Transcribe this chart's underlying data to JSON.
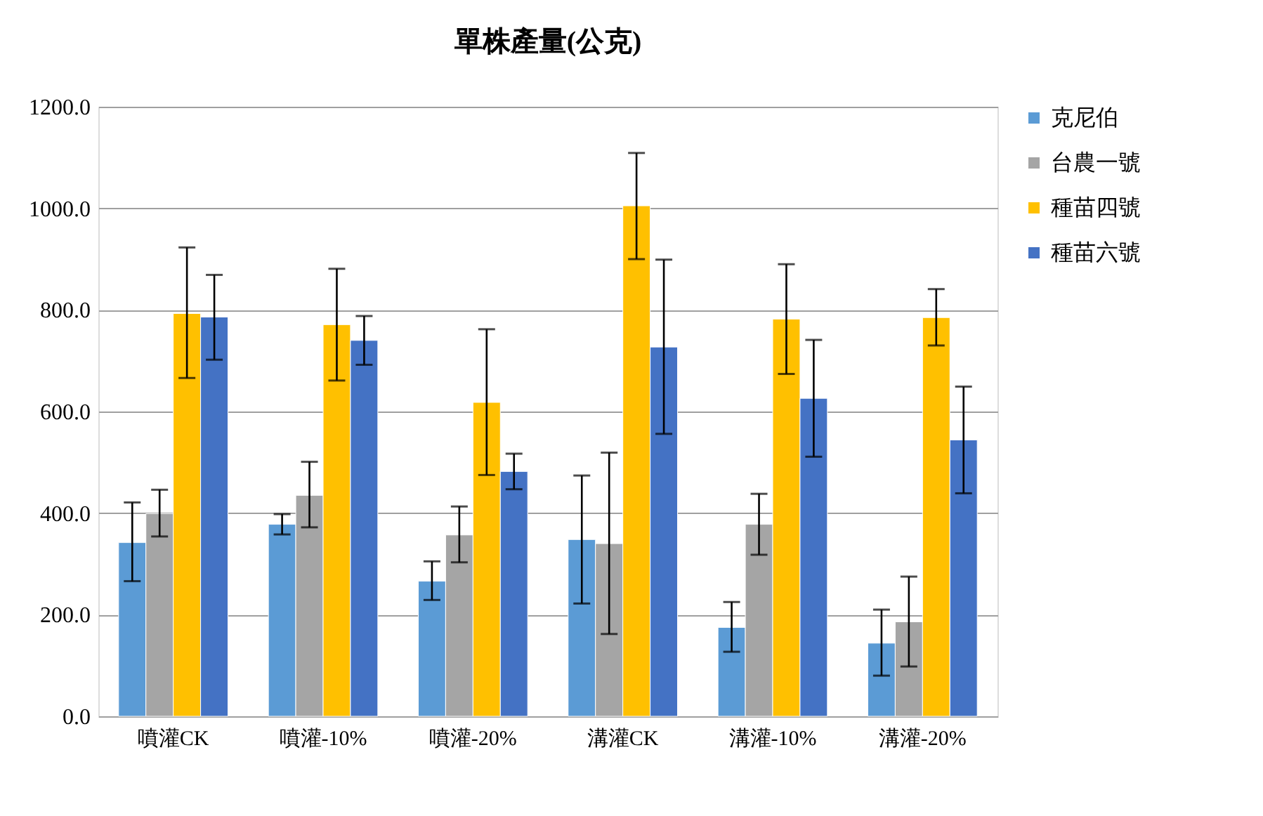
{
  "chart_data": {
    "type": "bar",
    "title": "單株產量(公克)",
    "categories": [
      "噴灌CK",
      "噴灌-10%",
      "噴灌-20%",
      "溝灌CK",
      "溝灌-10%",
      "溝灌-20%"
    ],
    "series": [
      {
        "name": "克尼伯",
        "color": "#5b9bd5",
        "values": [
          342,
          378,
          266,
          348,
          175,
          144
        ],
        "errors": [
          [
            266,
            421
          ],
          [
            358,
            398
          ],
          [
            229,
            305
          ],
          [
            222,
            474
          ],
          [
            127,
            225
          ],
          [
            80,
            210
          ]
        ]
      },
      {
        "name": "台農一號",
        "color": "#a5a5a5",
        "values": [
          399,
          435,
          357,
          340,
          378,
          186
        ],
        "errors": [
          [
            354,
            446
          ],
          [
            372,
            501
          ],
          [
            303,
            413
          ],
          [
            162,
            519
          ],
          [
            318,
            438
          ],
          [
            98,
            275
          ]
        ]
      },
      {
        "name": "種苗四號",
        "color": "#ffc000",
        "values": [
          793,
          771,
          618,
          1005,
          782,
          785
        ],
        "errors": [
          [
            666,
            923
          ],
          [
            661,
            881
          ],
          [
            475,
            762
          ],
          [
            900,
            1109
          ],
          [
            674,
            890
          ],
          [
            730,
            841
          ]
        ]
      },
      {
        "name": "種苗六號",
        "color": "#4472c4",
        "values": [
          786,
          740,
          482,
          727,
          626,
          544
        ],
        "errors": [
          [
            702,
            869
          ],
          [
            692,
            788
          ],
          [
            447,
            517
          ],
          [
            556,
            899
          ],
          [
            511,
            741
          ],
          [
            439,
            649
          ]
        ]
      }
    ],
    "ylim": [
      0,
      1200
    ],
    "yticks": [
      {
        "value": 0,
        "label": "0.0"
      },
      {
        "value": 200,
        "label": "200.0"
      },
      {
        "value": 400,
        "label": "400.0"
      },
      {
        "value": 600,
        "label": "600.0"
      },
      {
        "value": 800,
        "label": "800.0"
      },
      {
        "value": 1000,
        "label": "1000.0"
      },
      {
        "value": 1200,
        "label": "1200.0"
      }
    ],
    "grid": "y",
    "legend": "right"
  }
}
